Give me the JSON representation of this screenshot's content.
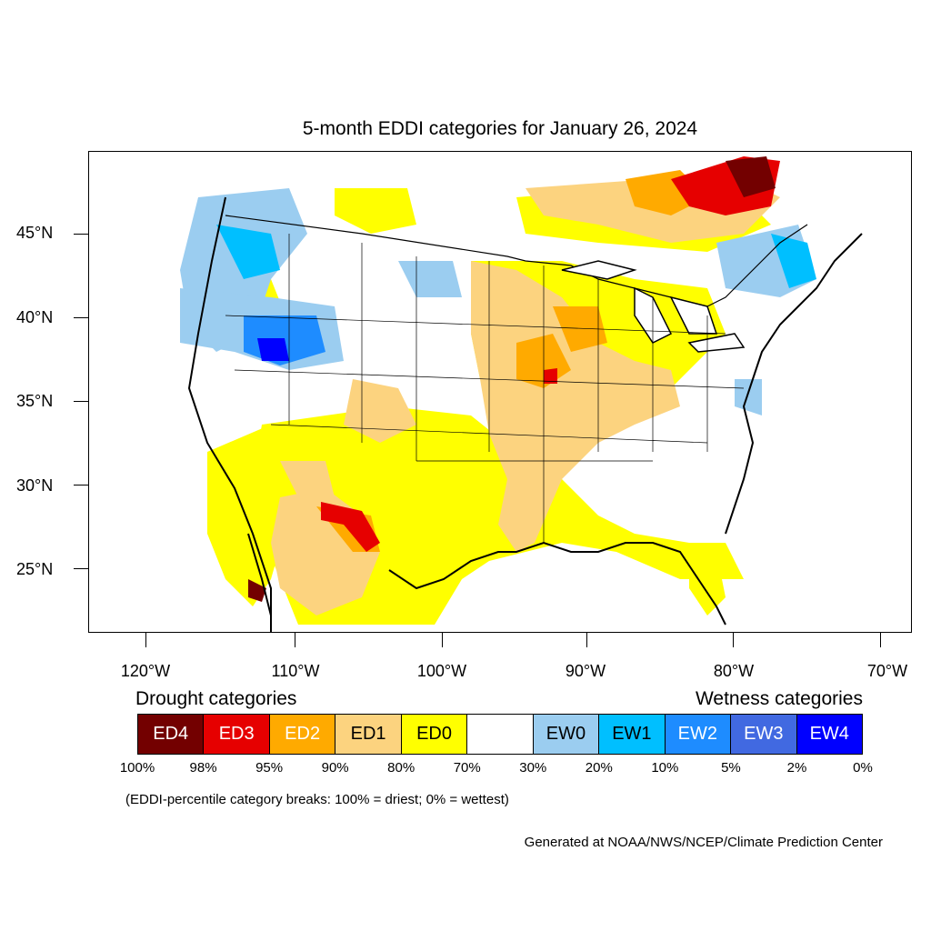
{
  "title": "5-month EDDI categories for January 26, 2024",
  "lat_labels": [
    "45°N",
    "40°N",
    "35°N",
    "30°N",
    "25°N"
  ],
  "lon_labels": [
    "120°W",
    "110°W",
    "100°W",
    "90°W",
    "80°W",
    "70°W"
  ],
  "legend": {
    "drought_heading": "Drought categories",
    "wetness_heading": "Wetness categories",
    "categories": [
      {
        "label": "ED4",
        "color": "#730000",
        "text_color": "#ffffff"
      },
      {
        "label": "ED3",
        "color": "#e60000",
        "text_color": "#ffffff"
      },
      {
        "label": "ED2",
        "color": "#ffaa00",
        "text_color": "#ffffff"
      },
      {
        "label": "ED1",
        "color": "#fcd37f",
        "text_color": "#000000"
      },
      {
        "label": "ED0",
        "color": "#ffff00",
        "text_color": "#000000"
      },
      {
        "label": "",
        "color": "#ffffff",
        "text_color": "#000000"
      },
      {
        "label": "EW0",
        "color": "#9bcdf0",
        "text_color": "#000000"
      },
      {
        "label": "EW1",
        "color": "#00bfff",
        "text_color": "#000000"
      },
      {
        "label": "EW2",
        "color": "#1e8cff",
        "text_color": "#ffffff"
      },
      {
        "label": "EW3",
        "color": "#4169e1",
        "text_color": "#ffffff"
      },
      {
        "label": "EW4",
        "color": "#0000ff",
        "text_color": "#ffffff"
      }
    ],
    "percent_breaks": [
      "100%",
      "98%",
      "95%",
      "90%",
      "80%",
      "70%",
      "30%",
      "20%",
      "10%",
      "5%",
      "2%",
      "0%"
    ]
  },
  "note": "(EDDI-percentile category breaks: 100% = driest; 0% = wettest)",
  "credit": "Generated at NOAA/NWS/NCEP/Climate Prediction Center"
}
